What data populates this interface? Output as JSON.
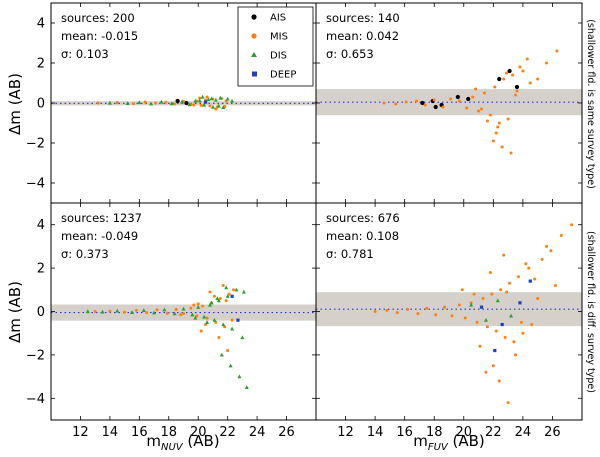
{
  "figure": {
    "ylabel": "Δm (AB)",
    "right_labels": [
      "(shallower fld. is same survey type)",
      "(shallower fld. is diff. survey type)"
    ]
  },
  "legend": {
    "entries": [
      {
        "label": "AIS",
        "color": "#000000",
        "marker": "circle"
      },
      {
        "label": "MIS",
        "color": "#ff7f0e",
        "marker": "circle"
      },
      {
        "label": "DIS",
        "color": "#2ca02c",
        "marker": "triangle"
      },
      {
        "label": "DEEP",
        "color": "#1f3fbf",
        "marker": "square"
      }
    ]
  },
  "chart_data": [
    {
      "type": "scatter",
      "panel": "top-left",
      "band": "NUV",
      "stats": {
        "sources": "sources: 200",
        "mean": "mean: -0.015",
        "sigma": "σ: 0.103"
      },
      "mean_value": -0.015,
      "sigma_value": 0.103,
      "xlim": [
        10,
        28
      ],
      "ylim": [
        -5,
        5
      ],
      "xticks": [
        12,
        14,
        16,
        18,
        20,
        22,
        24,
        26
      ],
      "yticks": [
        -4,
        -2,
        0,
        2,
        4
      ],
      "xlabel": "",
      "ylabel": "Δm (AB)",
      "series": [
        {
          "name": "AIS",
          "x": [
            18.6,
            19.2
          ],
          "y": [
            0.1,
            0.0
          ]
        },
        {
          "name": "MIS",
          "x": [
            13.2,
            14.5,
            15.6,
            16.4,
            17.1,
            17.8,
            18.4,
            19.0,
            19.5,
            19.9,
            20.2,
            20.5,
            20.8,
            21.0,
            21.3,
            21.6,
            21.9,
            20.1,
            19.7,
            21.2,
            20.6,
            21.8
          ],
          "y": [
            0.0,
            0.02,
            -0.03,
            0.05,
            0.0,
            0.04,
            -0.05,
            0.08,
            -0.08,
            0.1,
            -0.12,
            0.15,
            -0.15,
            0.2,
            -0.2,
            0.22,
            0.1,
            0.25,
            -0.1,
            -0.3,
            0.3,
            -0.18
          ]
        },
        {
          "name": "DIS",
          "x": [
            14.0,
            15.2,
            16.0,
            16.8,
            17.5,
            18.2,
            18.9,
            19.4,
            19.8,
            20.1,
            20.4,
            20.7,
            21.0,
            21.2,
            21.5,
            21.7,
            22.0,
            20.3,
            20.9,
            21.4,
            22.3
          ],
          "y": [
            0.0,
            -0.02,
            0.03,
            -0.04,
            0.05,
            -0.03,
            0.06,
            -0.08,
            0.1,
            0.12,
            -0.1,
            0.18,
            -0.2,
            0.15,
            0.25,
            -0.22,
            0.2,
            0.3,
            0.22,
            -0.15,
            0.1
          ]
        },
        {
          "name": "DEEP",
          "x": [
            20.5
          ],
          "y": [
            0.05
          ]
        }
      ]
    },
    {
      "type": "scatter",
      "panel": "top-right",
      "band": "FUV",
      "stats": {
        "sources": "sources: 140",
        "mean": "mean: 0.042",
        "sigma": "σ: 0.653"
      },
      "mean_value": 0.042,
      "sigma_value": 0.653,
      "xlim": [
        10,
        28
      ],
      "ylim": [
        -5,
        5
      ],
      "xticks": [
        12,
        14,
        16,
        18,
        20,
        22,
        24,
        26
      ],
      "yticks": [
        -4,
        -2,
        0,
        2,
        4
      ],
      "xlabel": "",
      "ylabel": "",
      "series": [
        {
          "name": "AIS",
          "x": [
            17.2,
            17.9,
            18.5,
            19.6,
            20.3,
            22.4,
            23.1,
            23.6,
            18.1
          ],
          "y": [
            0.0,
            0.1,
            -0.1,
            0.3,
            0.2,
            1.2,
            1.6,
            0.8,
            -0.2
          ]
        },
        {
          "name": "MIS",
          "x": [
            14.6,
            15.4,
            16.1,
            16.8,
            17.4,
            18.0,
            18.6,
            19.1,
            19.7,
            20.2,
            20.6,
            21.0,
            21.4,
            21.8,
            22.1,
            22.4,
            22.7,
            23.0,
            23.3,
            23.6,
            24.0,
            24.5,
            25.0,
            25.6,
            26.3,
            22.2,
            22.6,
            23.2,
            21.6,
            20.8,
            22.9,
            23.8,
            24.3,
            21.2,
            22.0,
            23.5,
            22.3
          ],
          "y": [
            0.0,
            -0.05,
            0.05,
            0.1,
            -0.1,
            0.15,
            -0.2,
            0.2,
            0.1,
            -0.25,
            0.3,
            -0.4,
            0.5,
            -0.6,
            0.8,
            -1.0,
            1.2,
            -0.8,
            1.4,
            0.6,
            1.6,
            1.0,
            1.2,
            2.0,
            2.6,
            -1.5,
            -2.2,
            -2.5,
            -0.9,
            0.7,
            1.5,
            1.8,
            2.2,
            -0.3,
            -1.9,
            0.4,
            -1.2
          ]
        },
        {
          "name": "DIS",
          "x": [],
          "y": []
        },
        {
          "name": "DEEP",
          "x": [],
          "y": []
        }
      ]
    },
    {
      "type": "scatter",
      "panel": "bottom-left",
      "band": "NUV",
      "stats": {
        "sources": "sources: 1237",
        "mean": "mean: -0.049",
        "sigma": "σ: 0.373"
      },
      "mean_value": -0.049,
      "sigma_value": 0.373,
      "xlim": [
        10,
        28
      ],
      "ylim": [
        -5,
        5
      ],
      "xticks": [
        12,
        14,
        16,
        18,
        20,
        22,
        24,
        26
      ],
      "yticks": [
        -4,
        -2,
        0,
        2,
        4
      ],
      "xlabel": "m_NUV (AB)",
      "ylabel": "Δm (AB)",
      "series": [
        {
          "name": "AIS",
          "x": [],
          "y": []
        },
        {
          "name": "MIS",
          "x": [
            13.0,
            14.0,
            15.0,
            15.8,
            16.5,
            17.2,
            17.9,
            18.5,
            19.0,
            19.5,
            19.9,
            20.3,
            20.6,
            20.9,
            21.2,
            21.5,
            21.8,
            22.1,
            22.4,
            20.2,
            20.8,
            21.4,
            21.7,
            22.0,
            19.7,
            20.5,
            21.1,
            21.9,
            22.3,
            18.8,
            20.0
          ],
          "y": [
            0.0,
            0.02,
            -0.03,
            0.05,
            -0.05,
            0.08,
            -0.08,
            0.1,
            -0.1,
            0.15,
            -0.2,
            0.25,
            -0.3,
            0.4,
            -0.5,
            0.6,
            -0.7,
            0.8,
            1.0,
            -0.9,
            0.9,
            -1.2,
            1.2,
            -1.8,
            0.3,
            -0.6,
            0.7,
            0.5,
            -0.4,
            -0.15,
            0.35
          ]
        },
        {
          "name": "DIS",
          "x": [
            12.5,
            13.5,
            14.5,
            15.5,
            16.3,
            17.0,
            17.7,
            18.4,
            19.0,
            19.6,
            20.0,
            20.4,
            20.8,
            21.1,
            21.4,
            21.7,
            22.0,
            22.3,
            22.6,
            23.0,
            23.3,
            21.6,
            22.2,
            21.9,
            20.6,
            21.3,
            22.8,
            23.1,
            20.9,
            19.8
          ],
          "y": [
            0.0,
            -0.02,
            0.03,
            -0.04,
            0.05,
            -0.06,
            0.08,
            -0.1,
            0.12,
            -0.15,
            0.2,
            -0.25,
            0.3,
            -0.4,
            0.5,
            -0.6,
            0.7,
            -0.8,
            1.0,
            -1.2,
            -3.5,
            -2.0,
            -2.5,
            1.1,
            -0.5,
            0.6,
            -3.0,
            0.9,
            0.4,
            -0.3
          ]
        },
        {
          "name": "DEEP",
          "x": [
            22.3,
            22.7
          ],
          "y": [
            0.7,
            -0.4
          ]
        }
      ]
    },
    {
      "type": "scatter",
      "panel": "bottom-right",
      "band": "FUV",
      "stats": {
        "sources": "sources: 676",
        "mean": "mean: 0.108",
        "sigma": "σ: 0.781"
      },
      "mean_value": 0.108,
      "sigma_value": 0.781,
      "xlim": [
        10,
        28
      ],
      "ylim": [
        -5,
        5
      ],
      "xticks": [
        12,
        14,
        16,
        18,
        20,
        22,
        24,
        26
      ],
      "yticks": [
        -4,
        -2,
        0,
        2,
        4
      ],
      "xlabel": "m_FUV (AB)",
      "ylabel": "",
      "series": [
        {
          "name": "AIS",
          "x": [],
          "y": []
        },
        {
          "name": "MIS",
          "x": [
            14.0,
            14.8,
            15.5,
            16.2,
            16.9,
            17.5,
            18.1,
            18.7,
            19.2,
            19.7,
            20.1,
            20.5,
            20.9,
            21.3,
            21.6,
            21.9,
            22.2,
            22.5,
            22.8,
            23.1,
            23.4,
            23.7,
            24.0,
            24.4,
            24.8,
            25.3,
            25.9,
            26.6,
            27.3,
            22.0,
            22.4,
            23.0,
            23.5,
            21.8,
            20.7,
            21.1,
            24.2,
            25.0,
            22.7,
            23.9,
            19.9,
            26.2,
            21.5,
            22.9,
            24.6,
            25.6
          ],
          "y": [
            0.0,
            0.05,
            -0.05,
            0.1,
            -0.1,
            0.15,
            -0.15,
            0.2,
            -0.2,
            0.3,
            -0.3,
            0.4,
            -0.5,
            0.6,
            -0.7,
            0.8,
            -0.9,
            1.0,
            -1.2,
            1.3,
            -1.4,
            1.6,
            -1.0,
            2.0,
            1.5,
            2.4,
            2.8,
            3.5,
            4.0,
            -2.5,
            -3.2,
            -4.2,
            -2.0,
            1.8,
            0.8,
            -1.6,
            2.2,
            0.6,
            2.6,
            -0.5,
            1.0,
            1.2,
            -2.8,
            0.9,
            -0.6,
            3.0
          ]
        },
        {
          "name": "DIS",
          "x": [
            20.5,
            21.5,
            22.3,
            23.2
          ],
          "y": [
            0.3,
            -0.4,
            0.5,
            -0.2
          ]
        },
        {
          "name": "DEEP",
          "x": [
            21.2,
            22.6,
            23.8,
            24.5,
            22.1
          ],
          "y": [
            0.2,
            -0.6,
            0.4,
            1.4,
            -1.8
          ]
        }
      ]
    }
  ]
}
